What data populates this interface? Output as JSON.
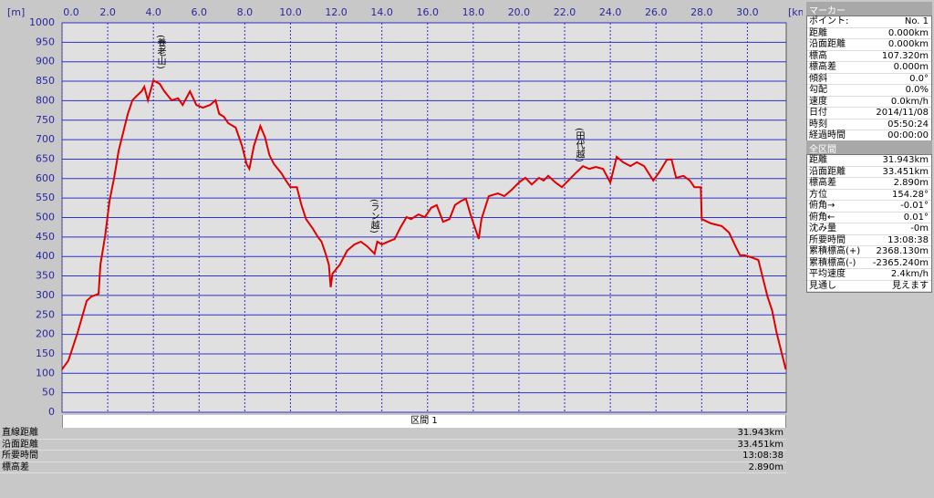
{
  "chart_data": {
    "type": "line",
    "x_label": "[km]",
    "y_label": "[m]",
    "x": [
      0,
      0.28,
      0.68,
      1.08,
      1.28,
      1.6,
      1.68,
      1.88,
      2.08,
      2.28,
      2.48,
      2.68,
      2.88,
      3.08,
      3.28,
      3.48,
      3.6,
      3.76,
      4.0,
      4.28,
      4.48,
      4.8,
      5.08,
      5.28,
      5.6,
      5.88,
      6.16,
      6.48,
      6.72,
      6.88,
      7.08,
      7.28,
      7.6,
      7.88,
      8.08,
      8.2,
      8.4,
      8.68,
      8.88,
      9.08,
      9.28,
      9.6,
      9.8,
      10.0,
      10.28,
      10.48,
      10.68,
      10.96,
      11.2,
      11.36,
      11.56,
      11.68,
      11.76,
      11.84,
      12.16,
      12.48,
      12.8,
      13.08,
      13.36,
      13.68,
      13.8,
      14.0,
      14.28,
      14.56,
      14.8,
      15.08,
      15.28,
      15.6,
      15.88,
      16.16,
      16.4,
      16.68,
      16.96,
      17.2,
      17.48,
      17.68,
      17.88,
      18.08,
      18.24,
      18.36,
      18.68,
      19.08,
      19.36,
      19.68,
      20.0,
      20.28,
      20.56,
      20.88,
      21.08,
      21.28,
      21.6,
      21.88,
      22.16,
      22.48,
      22.8,
      23.08,
      23.36,
      23.68,
      24.0,
      24.28,
      24.56,
      24.88,
      25.16,
      25.48,
      25.88,
      26.16,
      26.48,
      26.68,
      26.88,
      27.2,
      27.48,
      27.68,
      27.96,
      28.0,
      28.4,
      28.88,
      29.2,
      29.48,
      29.68,
      29.88,
      30.16,
      30.48,
      30.68,
      30.88,
      31.08,
      31.28,
      31.48,
      31.68
    ],
    "series": [
      {
        "color": "#e00000",
        "values": [
          110,
          133,
          204,
          286,
          297,
          304,
          379,
          450,
          543,
          602,
          672,
          719,
          766,
          801,
          813,
          824,
          836,
          801,
          852,
          843,
          824,
          801,
          806,
          789,
          824,
          789,
          782,
          789,
          801,
          766,
          759,
          742,
          731,
          684,
          637,
          625,
          684,
          735,
          707,
          660,
          637,
          614,
          595,
          578,
          578,
          532,
          496,
          473,
          450,
          438,
          403,
          379,
          321,
          356,
          379,
          415,
          431,
          438,
          426,
          407,
          438,
          431,
          438,
          445,
          473,
          501,
          496,
          508,
          501,
          525,
          532,
          489,
          496,
          532,
          543,
          548,
          508,
          473,
          445,
          496,
          555,
          562,
          555,
          571,
          590,
          602,
          585,
          602,
          595,
          607,
          590,
          578,
          595,
          614,
          632,
          625,
          630,
          625,
          590,
          656,
          642,
          632,
          642,
          632,
          595,
          618,
          649,
          649,
          602,
          607,
          595,
          578,
          578,
          496,
          485,
          478,
          461,
          426,
          403,
          403,
          398,
          391,
          344,
          297,
          262,
          204,
          157,
          110
        ]
      }
    ],
    "xlim": [
      0,
      31.7
    ],
    "ylim": [
      0,
      1000
    ],
    "xticks": [
      {
        "value": 0,
        "label": "0.0"
      },
      {
        "value": 2,
        "label": "2.0"
      },
      {
        "value": 4,
        "label": "4.0"
      },
      {
        "value": 6,
        "label": "6.0"
      },
      {
        "value": 8,
        "label": "8.0"
      },
      {
        "value": 10,
        "label": "10.0"
      },
      {
        "value": 12,
        "label": "12.0"
      },
      {
        "value": 14,
        "label": "14.0"
      },
      {
        "value": 16,
        "label": "16.0"
      },
      {
        "value": 18,
        "label": "18.0"
      },
      {
        "value": 20,
        "label": "20.0"
      },
      {
        "value": 22,
        "label": "22.0"
      },
      {
        "value": 24,
        "label": "24.0"
      },
      {
        "value": 26,
        "label": "26.0"
      },
      {
        "value": 28,
        "label": "28.0"
      },
      {
        "value": 30,
        "label": "30.0"
      }
    ],
    "yticks": [
      0,
      50,
      100,
      150,
      200,
      250,
      300,
      350,
      400,
      450,
      500,
      550,
      600,
      650,
      700,
      750,
      800,
      850,
      900,
      950,
      1000
    ],
    "grid": true,
    "annotations": [
      "(養老山)",
      "(ラン越)",
      "(田代越)"
    ]
  },
  "marker_panel": {
    "title": "マーカー",
    "rows": [
      [
        "ポイント:",
        "No. 1"
      ],
      [
        "距離",
        "0.000km"
      ],
      [
        "沿面距離",
        "0.000km"
      ],
      [
        "標高",
        "107.320m"
      ],
      [
        "標高差",
        "0.000m"
      ],
      [
        "傾斜",
        "0.0°"
      ],
      [
        "勾配",
        "0.0%"
      ],
      [
        "速度",
        "0.0km/h"
      ],
      [
        "日付",
        "2014/11/08"
      ],
      [
        "時刻",
        "05:50:24"
      ],
      [
        "経過時間",
        "00:00:00"
      ]
    ]
  },
  "total_panel": {
    "title": "全区間",
    "rows": [
      [
        "距離",
        "31.943km"
      ],
      [
        "沿面距離",
        "33.451km"
      ],
      [
        "標高差",
        "2.890m"
      ],
      [
        "方位",
        "154.28°"
      ],
      [
        "俯角→",
        "-0.01°"
      ],
      [
        "俯角←",
        "0.01°"
      ],
      [
        "沈み量",
        "-0m"
      ],
      [
        "所要時間",
        "13:08:38"
      ],
      [
        "累積標高(+)",
        "2368.130m"
      ],
      [
        "累積標高(-)",
        "-2365.240m"
      ],
      [
        "平均速度",
        "2.4km/h"
      ],
      [
        "見通し",
        "見えます"
      ]
    ]
  },
  "section_table": {
    "header": "区間 1",
    "rows": [
      [
        "直線距離",
        "31.943km"
      ],
      [
        "沿面距離",
        "33.451km"
      ],
      [
        "所要時間",
        "13:08:38"
      ],
      [
        "標高差",
        "2.890m"
      ]
    ]
  }
}
